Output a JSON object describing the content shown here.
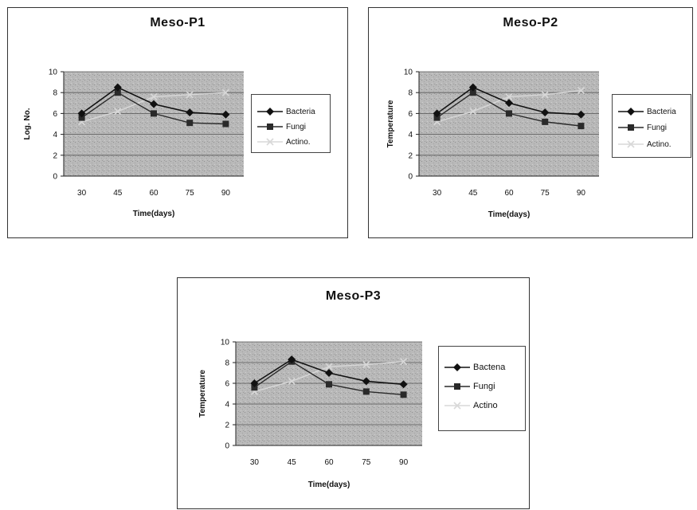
{
  "chart_data": [
    {
      "type": "line",
      "title": "Meso-P1",
      "xlabel": "Time(days)",
      "ylabel": "Log. No.",
      "categories": [
        "30",
        "45",
        "60",
        "75",
        "90"
      ],
      "ylim": [
        0,
        10
      ],
      "yticks": [
        "0",
        "2",
        "4",
        "6",
        "8",
        "10"
      ],
      "grid": true,
      "legend": "right",
      "series": [
        {
          "name": "Bacteria",
          "values": [
            6.0,
            8.5,
            6.9,
            6.1,
            5.9
          ],
          "color": "#111111",
          "marker": "diamond"
        },
        {
          "name": "Fungi",
          "values": [
            5.6,
            8.0,
            6.0,
            5.1,
            5.0
          ],
          "color": "#2a2a2a",
          "marker": "square"
        },
        {
          "name": "Actino.",
          "values": [
            5.2,
            6.2,
            7.6,
            7.8,
            8.0
          ],
          "color": "#d8d8d8",
          "marker": "cross"
        }
      ]
    },
    {
      "type": "line",
      "title": "Meso-P2",
      "xlabel": "Time(days)",
      "ylabel": "Temperature",
      "categories": [
        "30",
        "45",
        "60",
        "75",
        "90"
      ],
      "ylim": [
        0,
        10
      ],
      "yticks": [
        "0",
        "2",
        "4",
        "6",
        "8",
        "10"
      ],
      "grid": true,
      "legend": "right",
      "series": [
        {
          "name": "Bacteria",
          "values": [
            6.0,
            8.5,
            7.0,
            6.1,
            5.9
          ],
          "color": "#111111",
          "marker": "diamond"
        },
        {
          "name": "Fungi",
          "values": [
            5.6,
            8.0,
            6.0,
            5.2,
            4.8
          ],
          "color": "#2a2a2a",
          "marker": "square"
        },
        {
          "name": "Actino.",
          "values": [
            5.2,
            6.2,
            7.6,
            7.8,
            8.2
          ],
          "color": "#d8d8d8",
          "marker": "cross"
        }
      ]
    },
    {
      "type": "line",
      "title": "Meso-P3",
      "xlabel": "Time(days)",
      "ylabel": "Temperature",
      "categories": [
        "30",
        "45",
        "60",
        "75",
        "90"
      ],
      "ylim": [
        0,
        10
      ],
      "yticks": [
        "0",
        "2",
        "4",
        "6",
        "8",
        "10"
      ],
      "grid": true,
      "legend": "right",
      "series": [
        {
          "name": "Bactena",
          "values": [
            6.0,
            8.3,
            7.0,
            6.2,
            5.9
          ],
          "color": "#111111",
          "marker": "diamond"
        },
        {
          "name": "Fungi",
          "values": [
            5.6,
            8.1,
            5.9,
            5.2,
            4.9
          ],
          "color": "#2a2a2a",
          "marker": "square"
        },
        {
          "name": "Actino",
          "values": [
            5.2,
            6.2,
            7.6,
            7.8,
            8.1
          ],
          "color": "#d8d8d8",
          "marker": "cross"
        }
      ]
    }
  ]
}
